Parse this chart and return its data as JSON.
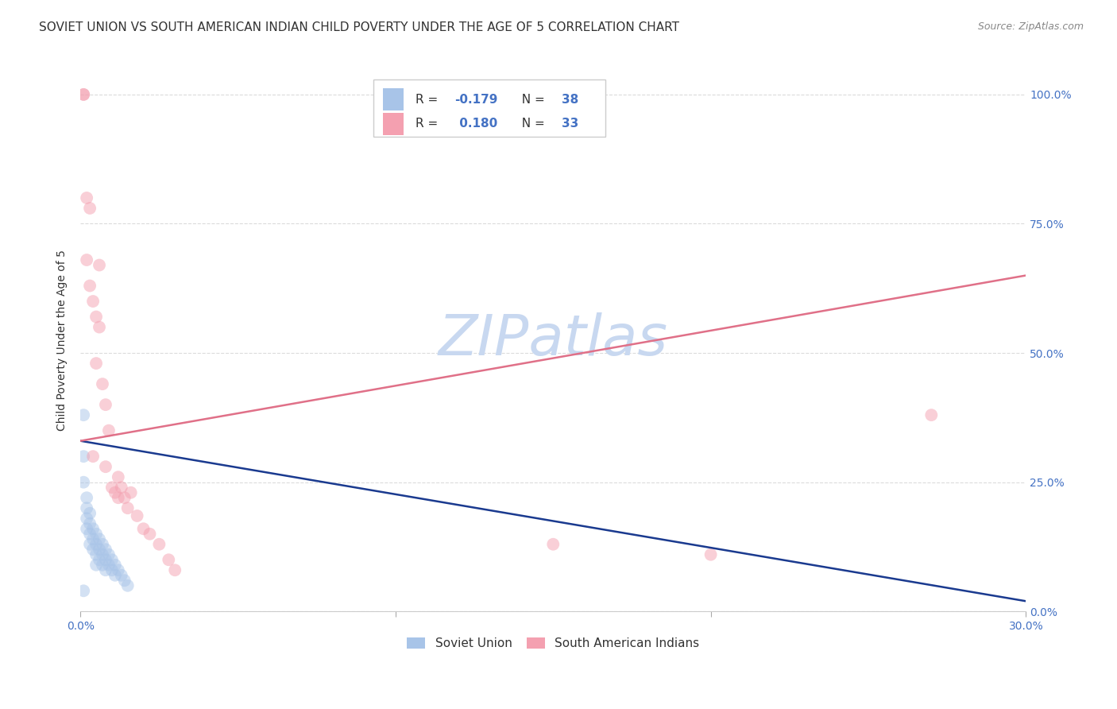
{
  "title": "SOVIET UNION VS SOUTH AMERICAN INDIAN CHILD POVERTY UNDER THE AGE OF 5 CORRELATION CHART",
  "source": "Source: ZipAtlas.com",
  "ylabel": "Child Poverty Under the Age of 5",
  "xlim": [
    0,
    0.3
  ],
  "ylim": [
    0,
    1.05
  ],
  "legend1_R": "-0.179",
  "legend1_N": "38",
  "legend2_R": "0.180",
  "legend2_N": "33",
  "blue_color": "#a8c4e8",
  "pink_color": "#f4a0b0",
  "blue_line_color": "#1a3a8f",
  "pink_line_color": "#e07088",
  "soviet_points_x": [
    0.001,
    0.001,
    0.001,
    0.002,
    0.002,
    0.002,
    0.002,
    0.003,
    0.003,
    0.003,
    0.003,
    0.004,
    0.004,
    0.004,
    0.005,
    0.005,
    0.005,
    0.005,
    0.006,
    0.006,
    0.006,
    0.007,
    0.007,
    0.007,
    0.008,
    0.008,
    0.008,
    0.009,
    0.009,
    0.01,
    0.01,
    0.011,
    0.011,
    0.012,
    0.013,
    0.014,
    0.015,
    0.001
  ],
  "soviet_points_y": [
    0.38,
    0.3,
    0.25,
    0.22,
    0.2,
    0.18,
    0.16,
    0.19,
    0.17,
    0.15,
    0.13,
    0.16,
    0.14,
    0.12,
    0.15,
    0.13,
    0.11,
    0.09,
    0.14,
    0.12,
    0.1,
    0.13,
    0.11,
    0.09,
    0.12,
    0.1,
    0.08,
    0.11,
    0.09,
    0.1,
    0.08,
    0.09,
    0.07,
    0.08,
    0.07,
    0.06,
    0.05,
    0.04
  ],
  "sa_points_x": [
    0.001,
    0.001,
    0.002,
    0.002,
    0.003,
    0.003,
    0.004,
    0.005,
    0.005,
    0.006,
    0.006,
    0.007,
    0.008,
    0.009,
    0.01,
    0.011,
    0.012,
    0.013,
    0.014,
    0.015,
    0.016,
    0.018,
    0.02,
    0.022,
    0.025,
    0.028,
    0.03,
    0.004,
    0.008,
    0.012,
    0.15,
    0.2,
    0.27
  ],
  "sa_points_y": [
    1.0,
    1.0,
    0.8,
    0.68,
    0.78,
    0.63,
    0.6,
    0.57,
    0.48,
    0.67,
    0.55,
    0.44,
    0.4,
    0.35,
    0.24,
    0.23,
    0.26,
    0.24,
    0.22,
    0.2,
    0.23,
    0.185,
    0.16,
    0.15,
    0.13,
    0.1,
    0.08,
    0.3,
    0.28,
    0.22,
    0.13,
    0.11,
    0.38
  ],
  "blue_trend_x": [
    0.0,
    0.3
  ],
  "blue_trend_y": [
    0.33,
    0.02
  ],
  "pink_trend_x": [
    0.0,
    0.3
  ],
  "pink_trend_y": [
    0.33,
    0.65
  ],
  "background_color": "#ffffff",
  "grid_color": "#d8d8d8",
  "title_fontsize": 11,
  "axis_label_fontsize": 10,
  "tick_fontsize": 10,
  "marker_size": 130,
  "marker_alpha": 0.5,
  "watermark": "ZIPatlas",
  "watermark_color": "#c8d8f0",
  "watermark_fontsize": 52,
  "tick_color": "#4472c4",
  "label_color": "#333333"
}
